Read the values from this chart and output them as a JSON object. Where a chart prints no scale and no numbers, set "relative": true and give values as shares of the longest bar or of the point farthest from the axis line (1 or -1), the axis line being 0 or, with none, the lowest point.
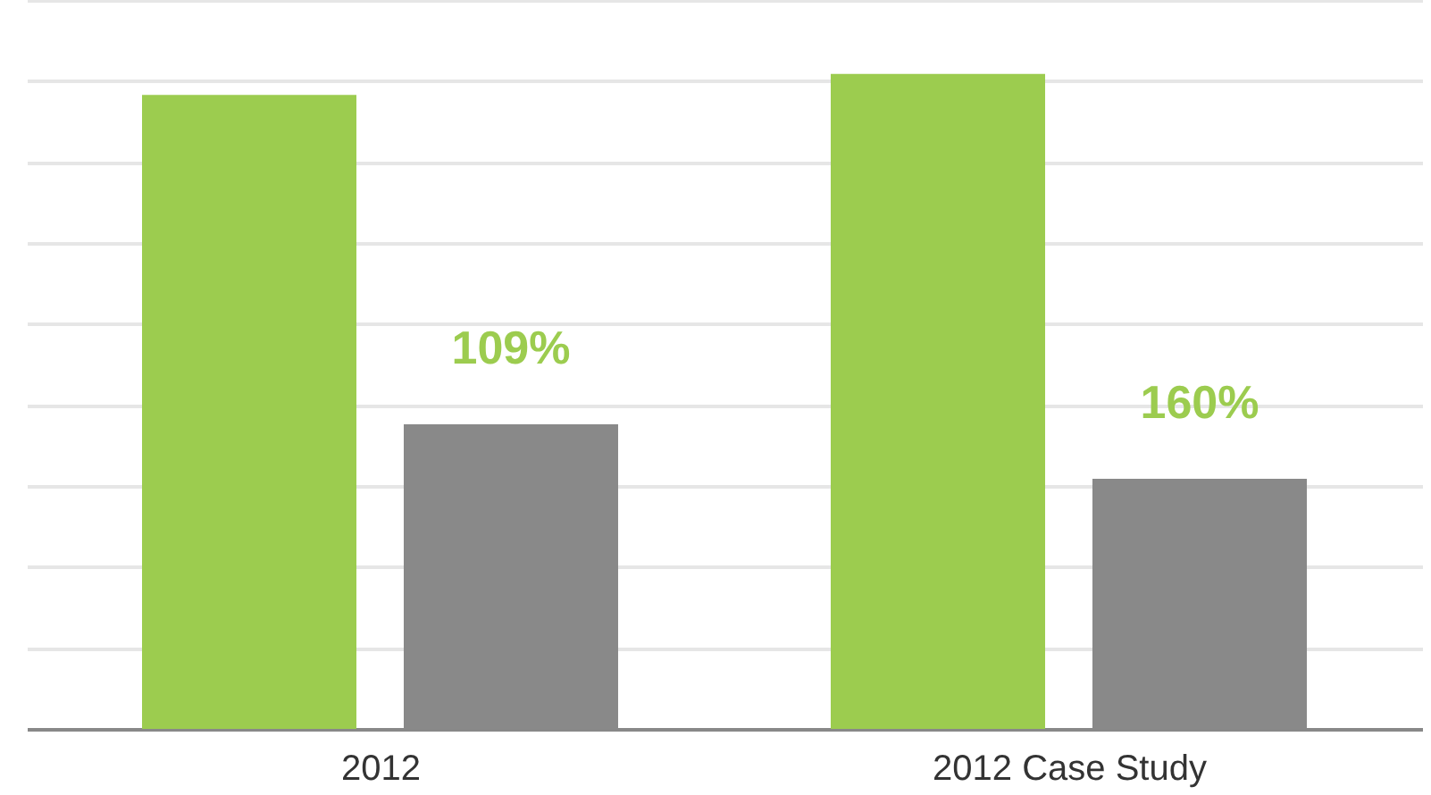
{
  "chart_data": {
    "type": "bar",
    "relative": true,
    "categories": [
      "2012",
      "2012 Case Study"
    ],
    "series": [
      {
        "color": "#9ccc4f",
        "values": [
          0.968,
          1
        ]
      },
      {
        "color": "#898989",
        "values": [
          0.465,
          0.382
        ]
      }
    ],
    "annotations": [
      "109%",
      "160%"
    ],
    "grid": "y"
  }
}
